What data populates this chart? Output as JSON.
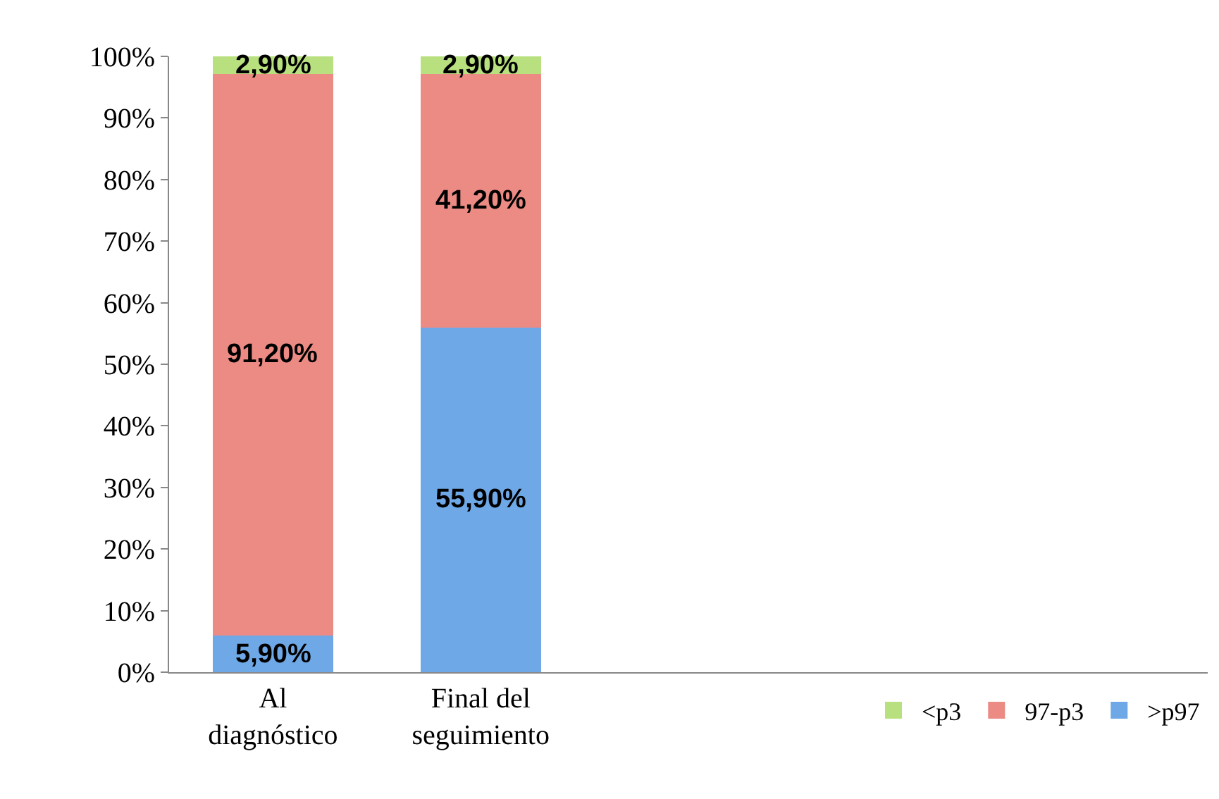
{
  "chart_data": {
    "type": "bar",
    "stacked": true,
    "categories": [
      "Al\ndiagnóstico",
      "Final del\nseguimiento"
    ],
    "series": [
      {
        "name": ">p97",
        "color": "#6fa8e6",
        "values": [
          5.9,
          55.9
        ],
        "value_labels": [
          "5,90%",
          "55,90%"
        ]
      },
      {
        "name": "97-p3",
        "color": "#ec8a84",
        "values": [
          91.2,
          41.2
        ],
        "value_labels": [
          "91,20%",
          "41,20%"
        ]
      },
      {
        "name": "<p3",
        "color": "#b8e07e",
        "values": [
          2.9,
          2.9
        ],
        "value_labels": [
          "2,90%",
          "2,90%"
        ]
      }
    ],
    "ylim": [
      0,
      100
    ],
    "yticks": [
      {
        "value": 0,
        "label": "0%"
      },
      {
        "value": 10,
        "label": "10%"
      },
      {
        "value": 20,
        "label": "20%"
      },
      {
        "value": 30,
        "label": "30%"
      },
      {
        "value": 40,
        "label": "40%"
      },
      {
        "value": 50,
        "label": "50%"
      },
      {
        "value": 60,
        "label": "60%"
      },
      {
        "value": 70,
        "label": "70%"
      },
      {
        "value": 80,
        "label": "80%"
      },
      {
        "value": 90,
        "label": "90%"
      },
      {
        "value": 100,
        "label": "100%"
      }
    ],
    "grid": false,
    "legend": "bottom right"
  }
}
